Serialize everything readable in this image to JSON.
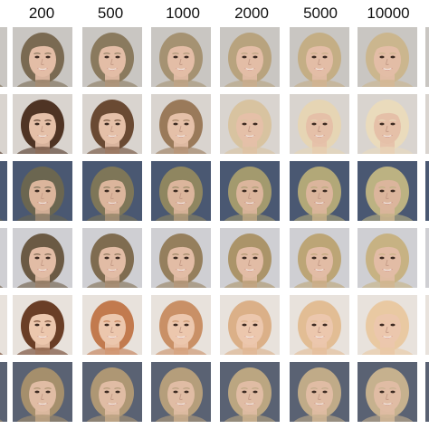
{
  "figure": {
    "column_labels": [
      "200",
      "500",
      "1000",
      "2000",
      "5000",
      "10000"
    ]
  },
  "rows": [
    {
      "name": "row-1",
      "bg": "#c9c6c2",
      "hair": [
        "#7a6a52",
        "#8a7a5e",
        "#a59272",
        "#b8a37e",
        "#c4ae85",
        "#cbb68e"
      ],
      "skin": "#e3bda6",
      "lip": "#b5555a"
    },
    {
      "name": "row-2",
      "bg": "#d9d4cf",
      "hair": [
        "#4f3424",
        "#6a4a33",
        "#9a7a5a",
        "#d8c3a0",
        "#e6d5b4",
        "#eadbbc"
      ],
      "skin": "#e5c0a8",
      "lip": "#a85055"
    },
    {
      "name": "row-3",
      "bg": "#4a5872",
      "hair": [
        "#6b6650",
        "#7e7658",
        "#8f8660",
        "#a39a6e",
        "#b2a878",
        "#bcb282"
      ],
      "skin": "#dbb59c",
      "lip": "#b0474f"
    },
    {
      "name": "row-4",
      "bg": "#cfcfd3",
      "hair": [
        "#6b5a44",
        "#7f6c50",
        "#957f5d",
        "#ab9469",
        "#bca576",
        "#c7b283"
      ],
      "skin": "#e2bca5",
      "lip": "#b54e57"
    },
    {
      "name": "row-5",
      "bg": "#e8e2dc",
      "hair": [
        "#6a3e26",
        "#c27a4e",
        "#c99066",
        "#dbb088",
        "#e2bd94",
        "#e9c9a2"
      ],
      "skin": "#ecc7ad",
      "lip": "#c06470"
    },
    {
      "name": "row-6",
      "bg": "#5a6273",
      "hair": [
        "#a58f6c",
        "#ae9774",
        "#b59e7b",
        "#bba681",
        "#c0ab88",
        "#c6b18e"
      ],
      "skin": "#e0bca4",
      "lip": "#b3585e"
    }
  ]
}
